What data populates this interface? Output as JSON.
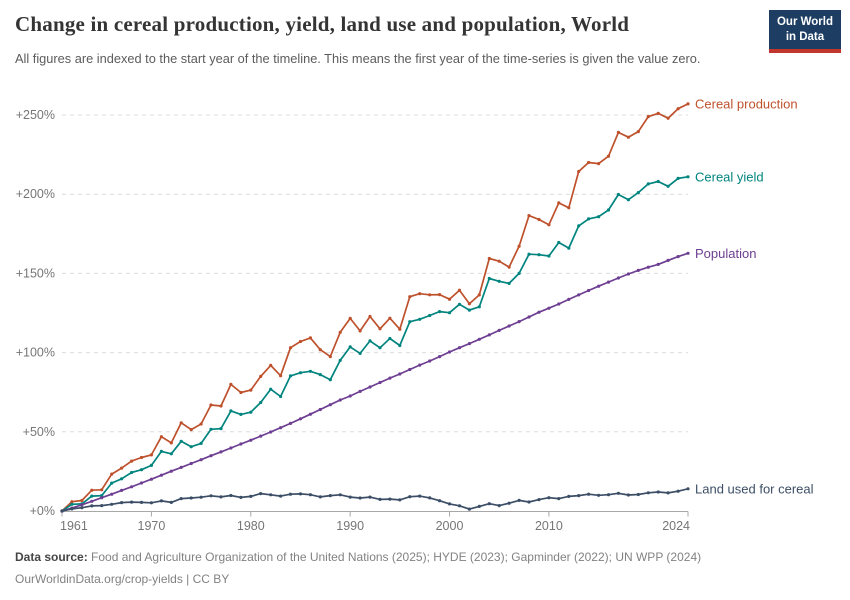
{
  "header": {
    "title": "Change in cereal production, yield, land use and population, World",
    "subtitle": "All figures are indexed to the start year of the timeline. This means the first year of the time-series is given the value zero.",
    "logo": {
      "line1": "Our World",
      "line2": "in Data"
    }
  },
  "footer": {
    "source_label": "Data source:",
    "source_text": " Food and Agriculture Organization of the United Nations (2025); HYDE (2023); Gapminder (2022); UN WPP (2024)",
    "license_line": "OurWorldinData.org/crop-yields | CC BY"
  },
  "colors": {
    "logo_bg": "#1D3D63",
    "logo_stripe": "#C0362C",
    "gridline": "#dcdcdc",
    "axis_line": "#a8a8a8",
    "axis_label": "#767676"
  },
  "chart_data": {
    "type": "line",
    "title": "Change in cereal production, yield, land use and population, World",
    "xlabel": "",
    "ylabel": "",
    "grid": "horizontal-dashed",
    "legend_position": "right-end-of-line-labels",
    "ylim": [
      0,
      260
    ],
    "y_ticks": [
      {
        "value": 0,
        "label": "+0%"
      },
      {
        "value": 50,
        "label": "+50%"
      },
      {
        "value": 100,
        "label": "+100%"
      },
      {
        "value": 150,
        "label": "+150%"
      },
      {
        "value": 200,
        "label": "+200%"
      },
      {
        "value": 250,
        "label": "+250%"
      }
    ],
    "x_ticks": [
      {
        "value": 1961,
        "label": "1961"
      },
      {
        "value": 1970,
        "label": "1970"
      },
      {
        "value": 1980,
        "label": "1980"
      },
      {
        "value": 1990,
        "label": "1990"
      },
      {
        "value": 2000,
        "label": "2000"
      },
      {
        "value": 2010,
        "label": "2010"
      },
      {
        "value": 2024,
        "label": "2024"
      }
    ],
    "x": [
      1961,
      1962,
      1963,
      1964,
      1965,
      1966,
      1967,
      1968,
      1969,
      1970,
      1971,
      1972,
      1973,
      1974,
      1975,
      1976,
      1977,
      1978,
      1979,
      1980,
      1981,
      1982,
      1983,
      1984,
      1985,
      1986,
      1987,
      1988,
      1989,
      1990,
      1991,
      1992,
      1993,
      1994,
      1995,
      1996,
      1997,
      1998,
      1999,
      2000,
      2001,
      2002,
      2003,
      2004,
      2005,
      2006,
      2007,
      2008,
      2009,
      2010,
      2011,
      2012,
      2013,
      2014,
      2015,
      2016,
      2017,
      2018,
      2019,
      2020,
      2021,
      2022,
      2023,
      2024
    ],
    "unit": "% change relative to 1961",
    "series": [
      {
        "name": "Cereal production",
        "color": "#BE512C",
        "values": [
          0,
          5.9,
          6.6,
          13.1,
          13.4,
          23.3,
          27.1,
          31.5,
          33.8,
          35.4,
          46.9,
          43.0,
          55.7,
          51.4,
          54.9,
          66.9,
          66.3,
          79.9,
          74.8,
          76.3,
          85.0,
          91.9,
          85.4,
          103.1,
          107.0,
          109.3,
          101.8,
          97.5,
          112.8,
          121.6,
          113.7,
          122.8,
          115.0,
          121.7,
          114.8,
          135.3,
          137.2,
          136.5,
          136.6,
          133.7,
          139.4,
          130.9,
          136.4,
          159.4,
          157.7,
          154.0,
          167.2,
          186.5,
          184.0,
          180.7,
          194.5,
          191.4,
          214.3,
          220.0,
          219.3,
          224.0,
          239.0,
          236.0,
          239.5,
          249.0,
          251.0,
          248.0,
          254.0,
          257.0
        ]
      },
      {
        "name": "Cereal yield",
        "color": "#00847E",
        "values": [
          0,
          4.2,
          4.5,
          9.4,
          9.7,
          17.6,
          20.3,
          24.3,
          26.1,
          28.8,
          37.6,
          36.1,
          44.0,
          40.6,
          42.7,
          51.6,
          52.0,
          63.2,
          61.0,
          62.4,
          68.5,
          76.9,
          72.3,
          85.3,
          87.3,
          88.2,
          86.1,
          82.9,
          95.1,
          103.6,
          99.5,
          107.4,
          103.0,
          108.9,
          104.5,
          119.5,
          121.0,
          123.4,
          125.9,
          125.2,
          130.5,
          126.8,
          128.9,
          146.8,
          145.0,
          143.7,
          150.0,
          162.1,
          161.8,
          161.0,
          169.5,
          166.0,
          180.0,
          184.4,
          185.8,
          190.0,
          199.8,
          196.5,
          201.0,
          206.5,
          208.0,
          205.0,
          210.0,
          211.0
        ]
      },
      {
        "name": "Population",
        "color": "#6D3E91",
        "values": [
          0,
          1.8,
          3.9,
          6.1,
          8.4,
          10.6,
          13.0,
          15.3,
          17.7,
          20.1,
          22.6,
          25.1,
          27.5,
          30.0,
          32.4,
          34.9,
          37.3,
          39.8,
          42.3,
          44.7,
          47.3,
          49.9,
          52.6,
          55.3,
          58.2,
          61.1,
          64.1,
          67.1,
          70.1,
          72.6,
          75.5,
          78.3,
          81.1,
          83.9,
          86.5,
          89.3,
          92.1,
          94.7,
          97.5,
          100.4,
          103.1,
          105.7,
          108.4,
          111.2,
          114.0,
          116.8,
          119.6,
          122.5,
          125.5,
          128.0,
          130.7,
          133.6,
          136.4,
          139.2,
          141.9,
          144.5,
          147.1,
          149.6,
          151.9,
          153.9,
          155.7,
          158.2,
          160.6,
          162.7
        ]
      },
      {
        "name": "Land used for cereal",
        "color": "#3C4E66",
        "values": [
          0,
          1.3,
          2.1,
          3.2,
          3.4,
          4.2,
          5.3,
          5.6,
          5.4,
          5.2,
          6.4,
          5.4,
          7.8,
          8.2,
          8.7,
          9.6,
          8.9,
          9.8,
          8.6,
          9.2,
          11.0,
          10.2,
          9.4,
          10.6,
          10.8,
          10.3,
          8.9,
          9.7,
          10.2,
          8.8,
          8.2,
          8.8,
          7.3,
          7.5,
          7.0,
          9.0,
          9.4,
          8.3,
          6.5,
          4.5,
          3.3,
          1.2,
          2.9,
          4.6,
          3.4,
          4.9,
          6.7,
          5.7,
          7.2,
          8.4,
          7.8,
          9.2,
          9.7,
          10.6,
          9.9,
          10.3,
          11.2,
          10.1,
          10.4,
          11.5,
          12.0,
          11.4,
          12.5,
          14.0
        ]
      }
    ]
  }
}
